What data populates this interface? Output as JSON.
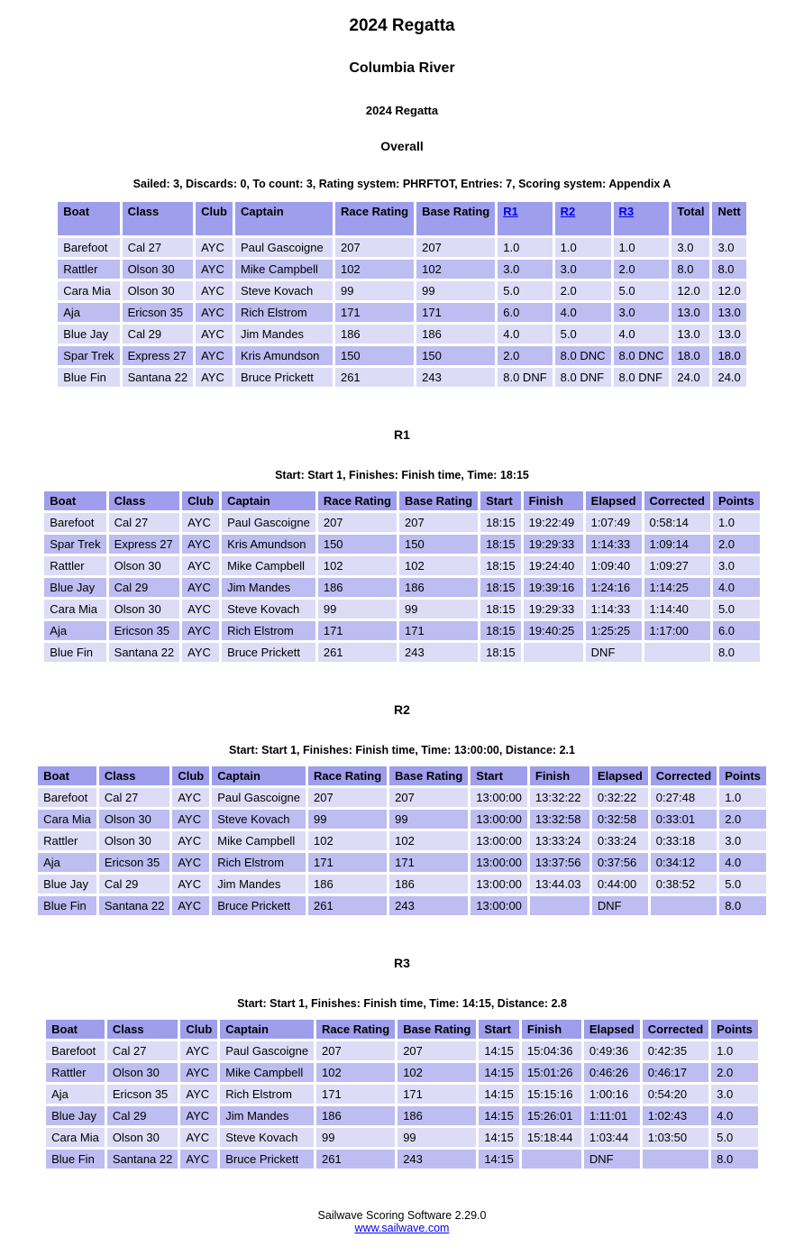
{
  "page": {
    "title": "2024 Regatta",
    "venue": "Columbia River",
    "event": "2024 Regatta",
    "section": "Overall",
    "summary": "Sailed: 3, Discards: 0, To count: 3, Rating system: PHRFTOT, Entries: 7, Scoring system: Appendix A"
  },
  "colors": {
    "header_bg": "#9e9eed",
    "row_dark": "#bdbdf2",
    "row_light": "#dcdcf7",
    "link": "#0000ee"
  },
  "overall": {
    "columns": [
      {
        "label": "Boat"
      },
      {
        "label": "Class"
      },
      {
        "label": "Club"
      },
      {
        "label": "Captain"
      },
      {
        "label": "Race Rating"
      },
      {
        "label": "Base Rating"
      },
      {
        "label": "R1",
        "link": true
      },
      {
        "label": "R2",
        "link": true
      },
      {
        "label": "R3",
        "link": true
      },
      {
        "label": "Total"
      },
      {
        "label": "Nett"
      }
    ],
    "rows": [
      [
        "Barefoot",
        "Cal 27",
        "AYC",
        "Paul Gascoigne",
        "207",
        "207",
        "1.0",
        "1.0",
        "1.0",
        "3.0",
        "3.0"
      ],
      [
        "Rattler",
        "Olson 30",
        "AYC",
        "Mike Campbell",
        "102",
        "102",
        "3.0",
        "3.0",
        "2.0",
        "8.0",
        "8.0"
      ],
      [
        "Cara Mia",
        "Olson 30",
        "AYC",
        "Steve Kovach",
        "99",
        "99",
        "5.0",
        "2.0",
        "5.0",
        "12.0",
        "12.0"
      ],
      [
        "Aja",
        "Ericson 35",
        "AYC",
        "Rich Elstrom",
        "171",
        "171",
        "6.0",
        "4.0",
        "3.0",
        "13.0",
        "13.0"
      ],
      [
        "Blue Jay",
        "Cal 29",
        "AYC",
        "Jim Mandes",
        "186",
        "186",
        "4.0",
        "5.0",
        "4.0",
        "13.0",
        "13.0"
      ],
      [
        "Spar Trek",
        "Express 27",
        "AYC",
        "Kris Amundson",
        "150",
        "150",
        "2.0",
        "8.0 DNC",
        "8.0 DNC",
        "18.0",
        "18.0"
      ],
      [
        "Blue Fin",
        "Santana 22",
        "AYC",
        "Bruce Prickett",
        "261",
        "243",
        "8.0 DNF",
        "8.0 DNF",
        "8.0 DNF",
        "24.0",
        "24.0"
      ]
    ]
  },
  "races": [
    {
      "title": "R1",
      "subtitle": "Start: Start 1, Finishes: Finish time, Time: 18:15",
      "columns": [
        {
          "label": "Boat"
        },
        {
          "label": "Class"
        },
        {
          "label": "Club"
        },
        {
          "label": "Captain"
        },
        {
          "label": "Race Rating"
        },
        {
          "label": "Base Rating"
        },
        {
          "label": "Start"
        },
        {
          "label": "Finish"
        },
        {
          "label": "Elapsed"
        },
        {
          "label": "Corrected"
        },
        {
          "label": "Points"
        }
      ],
      "rows": [
        [
          "Barefoot",
          "Cal 27",
          "AYC",
          "Paul Gascoigne",
          "207",
          "207",
          "18:15",
          "19:22:49",
          "1:07:49",
          "0:58:14",
          "1.0"
        ],
        [
          "Spar Trek",
          "Express 27",
          "AYC",
          "Kris Amundson",
          "150",
          "150",
          "18:15",
          "19:29:33",
          "1:14:33",
          "1:09:14",
          "2.0"
        ],
        [
          "Rattler",
          "Olson 30",
          "AYC",
          "Mike Campbell",
          "102",
          "102",
          "18:15",
          "19:24:40",
          "1:09:40",
          "1:09:27",
          "3.0"
        ],
        [
          "Blue Jay",
          "Cal 29",
          "AYC",
          "Jim Mandes",
          "186",
          "186",
          "18:15",
          "19:39:16",
          "1:24:16",
          "1:14:25",
          "4.0"
        ],
        [
          "Cara Mia",
          "Olson 30",
          "AYC",
          "Steve Kovach",
          "99",
          "99",
          "18:15",
          "19:29:33",
          "1:14:33",
          "1:14:40",
          "5.0"
        ],
        [
          "Aja",
          "Ericson 35",
          "AYC",
          "Rich Elstrom",
          "171",
          "171",
          "18:15",
          "19:40:25",
          "1:25:25",
          "1:17:00",
          "6.0"
        ],
        [
          "Blue Fin",
          "Santana 22",
          "AYC",
          "Bruce Prickett",
          "261",
          "243",
          "18:15",
          "",
          "DNF",
          "",
          "8.0"
        ]
      ]
    },
    {
      "title": "R2",
      "subtitle": "Start: Start 1, Finishes: Finish time, Time: 13:00:00, Distance: 2.1",
      "columns": [
        {
          "label": "Boat"
        },
        {
          "label": "Class"
        },
        {
          "label": "Club"
        },
        {
          "label": "Captain"
        },
        {
          "label": "Race Rating"
        },
        {
          "label": "Base Rating"
        },
        {
          "label": "Start"
        },
        {
          "label": "Finish"
        },
        {
          "label": "Elapsed"
        },
        {
          "label": "Corrected"
        },
        {
          "label": "Points"
        }
      ],
      "rows": [
        [
          "Barefoot",
          "Cal 27",
          "AYC",
          "Paul Gascoigne",
          "207",
          "207",
          "13:00:00",
          "13:32:22",
          "0:32:22",
          "0:27:48",
          "1.0"
        ],
        [
          "Cara Mia",
          "Olson 30",
          "AYC",
          "Steve Kovach",
          "99",
          "99",
          "13:00:00",
          "13:32:58",
          "0:32:58",
          "0:33:01",
          "2.0"
        ],
        [
          "Rattler",
          "Olson 30",
          "AYC",
          "Mike Campbell",
          "102",
          "102",
          "13:00:00",
          "13:33:24",
          "0:33:24",
          "0:33:18",
          "3.0"
        ],
        [
          "Aja",
          "Ericson 35",
          "AYC",
          "Rich Elstrom",
          "171",
          "171",
          "13:00:00",
          "13:37:56",
          "0:37:56",
          "0:34:12",
          "4.0"
        ],
        [
          "Blue Jay",
          "Cal 29",
          "AYC",
          "Jim Mandes",
          "186",
          "186",
          "13:00:00",
          "13:44.03",
          "0:44:00",
          "0:38:52",
          "5.0"
        ],
        [
          "Blue Fin",
          "Santana 22",
          "AYC",
          "Bruce Prickett",
          "261",
          "243",
          "13:00:00",
          "",
          "DNF",
          "",
          "8.0"
        ]
      ]
    },
    {
      "title": "R3",
      "subtitle": "Start: Start 1, Finishes: Finish time, Time: 14:15, Distance: 2.8",
      "columns": [
        {
          "label": "Boat"
        },
        {
          "label": "Class"
        },
        {
          "label": "Club"
        },
        {
          "label": "Captain"
        },
        {
          "label": "Race Rating"
        },
        {
          "label": "Base Rating"
        },
        {
          "label": "Start"
        },
        {
          "label": "Finish"
        },
        {
          "label": "Elapsed"
        },
        {
          "label": "Corrected"
        },
        {
          "label": "Points"
        }
      ],
      "rows": [
        [
          "Barefoot",
          "Cal 27",
          "AYC",
          "Paul Gascoigne",
          "207",
          "207",
          "14:15",
          "15:04:36",
          "0:49:36",
          "0:42:35",
          "1.0"
        ],
        [
          "Rattler",
          "Olson 30",
          "AYC",
          "Mike Campbell",
          "102",
          "102",
          "14:15",
          "15:01:26",
          "0:46:26",
          "0:46:17",
          "2.0"
        ],
        [
          "Aja",
          "Ericson 35",
          "AYC",
          "Rich Elstrom",
          "171",
          "171",
          "14:15",
          "15:15:16",
          "1:00:16",
          "0:54:20",
          "3.0"
        ],
        [
          "Blue Jay",
          "Cal 29",
          "AYC",
          "Jim Mandes",
          "186",
          "186",
          "14:15",
          "15:26:01",
          "1:11:01",
          "1:02:43",
          "4.0"
        ],
        [
          "Cara Mia",
          "Olson 30",
          "AYC",
          "Steve Kovach",
          "99",
          "99",
          "14:15",
          "15:18:44",
          "1:03:44",
          "1:03:50",
          "5.0"
        ],
        [
          "Blue Fin",
          "Santana 22",
          "AYC",
          "Bruce Prickett",
          "261",
          "243",
          "14:15",
          "",
          "DNF",
          "",
          "8.0"
        ]
      ]
    }
  ],
  "footer": {
    "text": "Sailwave Scoring Software 2.29.0",
    "link": "www.sailwave.com"
  }
}
